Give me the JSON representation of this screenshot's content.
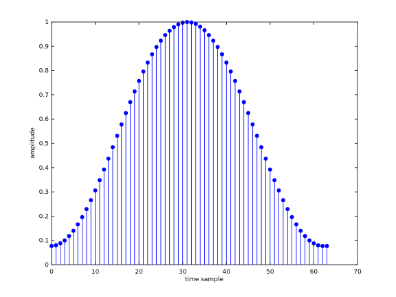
{
  "chart_data": {
    "type": "stem",
    "title": "",
    "xlabel": "time sample",
    "ylabel": "amplitude",
    "xlim": [
      0,
      70
    ],
    "ylim": [
      0,
      1
    ],
    "xticks": [
      "0",
      "10",
      "20",
      "30",
      "40",
      "50",
      "60",
      "70"
    ],
    "yticks": [
      "0",
      "0.1",
      "0.2",
      "0.3",
      "0.4",
      "0.5",
      "0.6",
      "0.7",
      "0.8",
      "0.9",
      "1"
    ],
    "grid": false,
    "legend": "none",
    "colors": {
      "stem": "#0000ff",
      "marker": "#0000ff",
      "axes": "#000000"
    },
    "series": [
      {
        "x": [
          0,
          1,
          2,
          3,
          4,
          5,
          6,
          7,
          8,
          9,
          10,
          11,
          12,
          13,
          14,
          15,
          16,
          17,
          18,
          19,
          20,
          21,
          22,
          23,
          24,
          25,
          26,
          27,
          28,
          29,
          30,
          31,
          32,
          33,
          34,
          35,
          36,
          37,
          38,
          39,
          40,
          41,
          42,
          43,
          44,
          45,
          46,
          47,
          48,
          49,
          50,
          51,
          52,
          53,
          54,
          55,
          56,
          57,
          58,
          59,
          60,
          61,
          62,
          63
        ],
        "y": [
          0.077,
          0.08,
          0.088,
          0.1,
          0.118,
          0.14,
          0.166,
          0.196,
          0.229,
          0.266,
          0.306,
          0.348,
          0.392,
          0.437,
          0.484,
          0.531,
          0.578,
          0.625,
          0.67,
          0.714,
          0.757,
          0.796,
          0.833,
          0.867,
          0.897,
          0.923,
          0.946,
          0.964,
          0.979,
          0.99,
          0.997,
          1.0,
          0.998,
          0.992,
          0.981,
          0.966,
          0.946,
          0.923,
          0.897,
          0.867,
          0.833,
          0.796,
          0.757,
          0.714,
          0.67,
          0.625,
          0.578,
          0.531,
          0.484,
          0.437,
          0.392,
          0.348,
          0.306,
          0.266,
          0.229,
          0.196,
          0.166,
          0.14,
          0.118,
          0.1,
          0.088,
          0.08,
          0.077,
          0.077
        ]
      }
    ]
  }
}
